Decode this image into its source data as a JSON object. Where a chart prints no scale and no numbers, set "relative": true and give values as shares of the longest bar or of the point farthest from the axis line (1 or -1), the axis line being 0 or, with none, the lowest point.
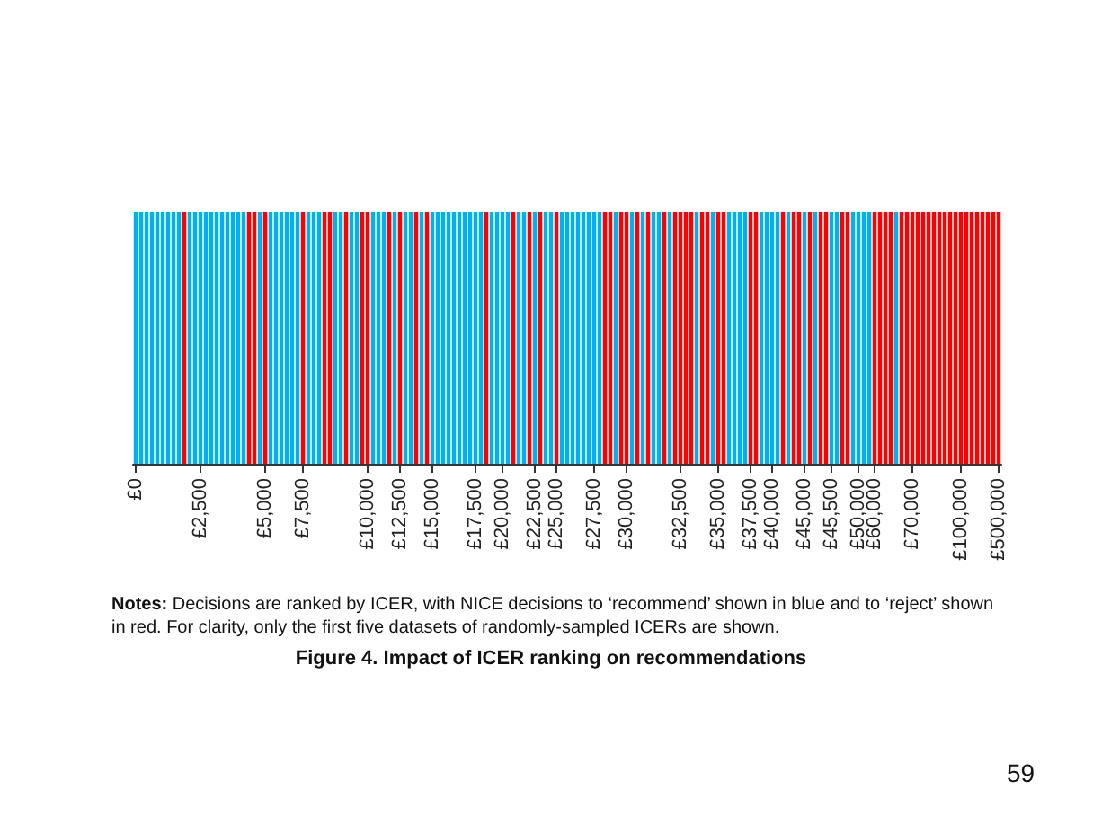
{
  "chart_data": {
    "type": "bar",
    "relative": true,
    "title": "Figure 4. Impact of ICER ranking on recommendations",
    "annotations": [
      "Notes: Decisions are ranked by ICER, with NICE decisions to ‘recommend’ shown in blue and to ‘reject’ shown in red. For clarity, only the first five datasets of randomly-sampled ICERs are shown.",
      "59"
    ],
    "categories": [
      "£0",
      null,
      null,
      null,
      null,
      null,
      null,
      null,
      null,
      null,
      null,
      null,
      "£2,500",
      null,
      null,
      null,
      null,
      null,
      null,
      null,
      null,
      null,
      null,
      null,
      "£5,000",
      null,
      null,
      null,
      null,
      null,
      null,
      "£7,500",
      null,
      null,
      null,
      null,
      null,
      null,
      null,
      null,
      null,
      null,
      null,
      "£10,000",
      null,
      null,
      null,
      null,
      null,
      "£12,500",
      null,
      null,
      null,
      null,
      null,
      "£15,000",
      null,
      null,
      null,
      null,
      null,
      null,
      null,
      "£17,500",
      null,
      null,
      null,
      null,
      "£20,000",
      null,
      null,
      null,
      null,
      null,
      "£22,500",
      null,
      null,
      null,
      "£25,000",
      null,
      null,
      null,
      null,
      null,
      null,
      "£27,500",
      null,
      null,
      null,
      null,
      null,
      "£30,000",
      null,
      null,
      null,
      null,
      null,
      null,
      null,
      null,
      null,
      "£32,500",
      null,
      null,
      null,
      null,
      null,
      null,
      "£35,000",
      null,
      null,
      null,
      null,
      null,
      "£37,500",
      null,
      null,
      null,
      "£40,000",
      null,
      null,
      null,
      null,
      null,
      "£45,000",
      null,
      null,
      null,
      null,
      "£45,500",
      null,
      null,
      null,
      null,
      "£50,000",
      null,
      null,
      "£60,000",
      null,
      null,
      null,
      null,
      null,
      null,
      "£70,000",
      null,
      null,
      null,
      null,
      null,
      null,
      null,
      null,
      "£100,000",
      null,
      null,
      null,
      null,
      null,
      null,
      "£500,000"
    ],
    "values": [
      1,
      1,
      1,
      1,
      1,
      1,
      1,
      1,
      1,
      1,
      1,
      1,
      1,
      1,
      1,
      1,
      1,
      1,
      1,
      1,
      1,
      1,
      1,
      1,
      1,
      1,
      1,
      1,
      1,
      1,
      1,
      1,
      1,
      1,
      1,
      1,
      1,
      1,
      1,
      1,
      1,
      1,
      1,
      1,
      1,
      1,
      1,
      1,
      1,
      1,
      1,
      1,
      1,
      1,
      1,
      1,
      1,
      1,
      1,
      1,
      1,
      1,
      1,
      1,
      1,
      1,
      1,
      1,
      1,
      1,
      1,
      1,
      1,
      1,
      1,
      1,
      1,
      1,
      1,
      1,
      1,
      1,
      1,
      1,
      1,
      1,
      1,
      1,
      1,
      1,
      1,
      1,
      1,
      1,
      1,
      1,
      1,
      1,
      1,
      1,
      1,
      1,
      1,
      1,
      1,
      1,
      1,
      1,
      1,
      1,
      1,
      1,
      1,
      1,
      1,
      1,
      1,
      1,
      1,
      1,
      1,
      1,
      1,
      1,
      1,
      1,
      1,
      1,
      1,
      1,
      1,
      1,
      1,
      1,
      1,
      1,
      1,
      1,
      1,
      1,
      1,
      1,
      1,
      1,
      1,
      1,
      1,
      1,
      1,
      1,
      1,
      1,
      1,
      1,
      1,
      1,
      1,
      1,
      1,
      1,
      1
    ],
    "colors": [
      "#00b0f0",
      "#00b0f0",
      "#00b0f0",
      "#00b0f0",
      "#00b0f0",
      "#00b0f0",
      "#00b0f0",
      "#00b0f0",
      "#00b0f0",
      "#ff0000",
      "#00b0f0",
      "#00b0f0",
      "#00b0f0",
      "#00b0f0",
      "#00b0f0",
      "#00b0f0",
      "#00b0f0",
      "#00b0f0",
      "#00b0f0",
      "#00b0f0",
      "#00b0f0",
      "#ff0000",
      "#ff0000",
      "#00b0f0",
      "#ff0000",
      "#00b0f0",
      "#00b0f0",
      "#00b0f0",
      "#00b0f0",
      "#00b0f0",
      "#00b0f0",
      "#ff0000",
      "#00b0f0",
      "#00b0f0",
      "#00b0f0",
      "#ff0000",
      "#ff0000",
      "#00b0f0",
      "#00b0f0",
      "#ff0000",
      "#00b0f0",
      "#00b0f0",
      "#ff0000",
      "#ff0000",
      "#00b0f0",
      "#00b0f0",
      "#00b0f0",
      "#ff0000",
      "#00b0f0",
      "#ff0000",
      "#00b0f0",
      "#00b0f0",
      "#ff0000",
      "#00b0f0",
      "#ff0000",
      "#00b0f0",
      "#00b0f0",
      "#00b0f0",
      "#00b0f0",
      "#00b0f0",
      "#00b0f0",
      "#00b0f0",
      "#00b0f0",
      "#00b0f0",
      "#00b0f0",
      "#ff0000",
      "#00b0f0",
      "#00b0f0",
      "#00b0f0",
      "#00b0f0",
      "#ff0000",
      "#00b0f0",
      "#00b0f0",
      "#ff0000",
      "#00b0f0",
      "#ff0000",
      "#00b0f0",
      "#00b0f0",
      "#ff0000",
      "#00b0f0",
      "#00b0f0",
      "#00b0f0",
      "#00b0f0",
      "#00b0f0",
      "#00b0f0",
      "#00b0f0",
      "#00b0f0",
      "#ff0000",
      "#ff0000",
      "#00b0f0",
      "#ff0000",
      "#ff0000",
      "#00b0f0",
      "#ff0000",
      "#00b0f0",
      "#ff0000",
      "#00b0f0",
      "#00b0f0",
      "#ff0000",
      "#00b0f0",
      "#ff0000",
      "#ff0000",
      "#ff0000",
      "#ff0000",
      "#00b0f0",
      "#ff0000",
      "#ff0000",
      "#00b0f0",
      "#ff0000",
      "#ff0000",
      "#00b0f0",
      "#00b0f0",
      "#00b0f0",
      "#00b0f0",
      "#ff0000",
      "#ff0000",
      "#00b0f0",
      "#00b0f0",
      "#00b0f0",
      "#00b0f0",
      "#ff0000",
      "#00b0f0",
      "#ff0000",
      "#ff0000",
      "#00b0f0",
      "#ff0000",
      "#00b0f0",
      "#ff0000",
      "#ff0000",
      "#00b0f0",
      "#00b0f0",
      "#ff0000",
      "#ff0000",
      "#00b0f0",
      "#00b0f0",
      "#00b0f0",
      "#00b0f0",
      "#ff0000",
      "#ff0000",
      "#ff0000",
      "#ff0000",
      "#00b0f0",
      "#ff0000",
      "#ff0000",
      "#ff0000",
      "#ff0000",
      "#ff0000",
      "#ff0000",
      "#ff0000",
      "#ff0000",
      "#ff0000",
      "#ff0000",
      "#ff0000",
      "#ff0000",
      "#ff0000",
      "#ff0000",
      "#ff0000",
      "#ff0000",
      "#ff0000",
      "#ff0000",
      "#ff0000"
    ]
  }
}
